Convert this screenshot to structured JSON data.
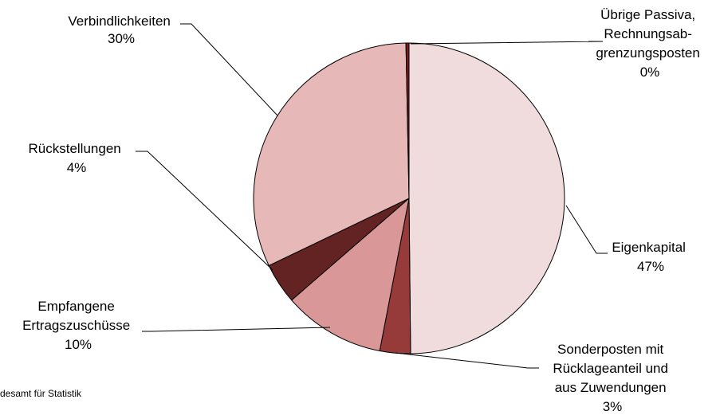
{
  "chart_data": {
    "type": "pie",
    "slices": [
      {
        "label": "Eigenkapital",
        "percent_label": "47%",
        "value": 47,
        "color": "#f0dcdc"
      },
      {
        "label": "Sonderposten mit Rücklageanteil und aus Zuwendungen",
        "percent_label": "3%",
        "value": 3,
        "color": "#963a3a"
      },
      {
        "label": "Empfangene Ertragszuschüsse",
        "percent_label": "10%",
        "value": 10,
        "color": "#d99797"
      },
      {
        "label": "Rückstellungen",
        "percent_label": "4%",
        "value": 4,
        "color": "#632323"
      },
      {
        "label": "Verbindlichkeiten",
        "percent_label": "30%",
        "value": 30,
        "color": "#e6b8b8"
      },
      {
        "label": "Übrige Passiva, Rechnungsabgrenzungsposten",
        "percent_label": "0%",
        "value": 0.3,
        "color": "#7a1c1c"
      }
    ],
    "start_angle": "12 o'clock",
    "direction": "clockwise",
    "legend": "none"
  },
  "labels": {
    "eigenkapital": [
      "Eigenkapital",
      "47%"
    ],
    "sonderposten": [
      "Sonderposten mit",
      "Rücklageanteil und",
      "aus Zuwendungen",
      "3%"
    ],
    "ertragszuschuesse": [
      "Empfangene",
      "Ertragszuschüsse",
      "10%"
    ],
    "rueckstellungen": [
      "Rückstellungen",
      "4%"
    ],
    "verbindlichkeiten": [
      "Verbindlichkeiten",
      "30%"
    ],
    "uebrige": [
      "Übrige Passiva,",
      "Rechnungsab-",
      "grenzungsposten",
      "0%"
    ]
  },
  "source_fragment": "desamt für Statistik"
}
